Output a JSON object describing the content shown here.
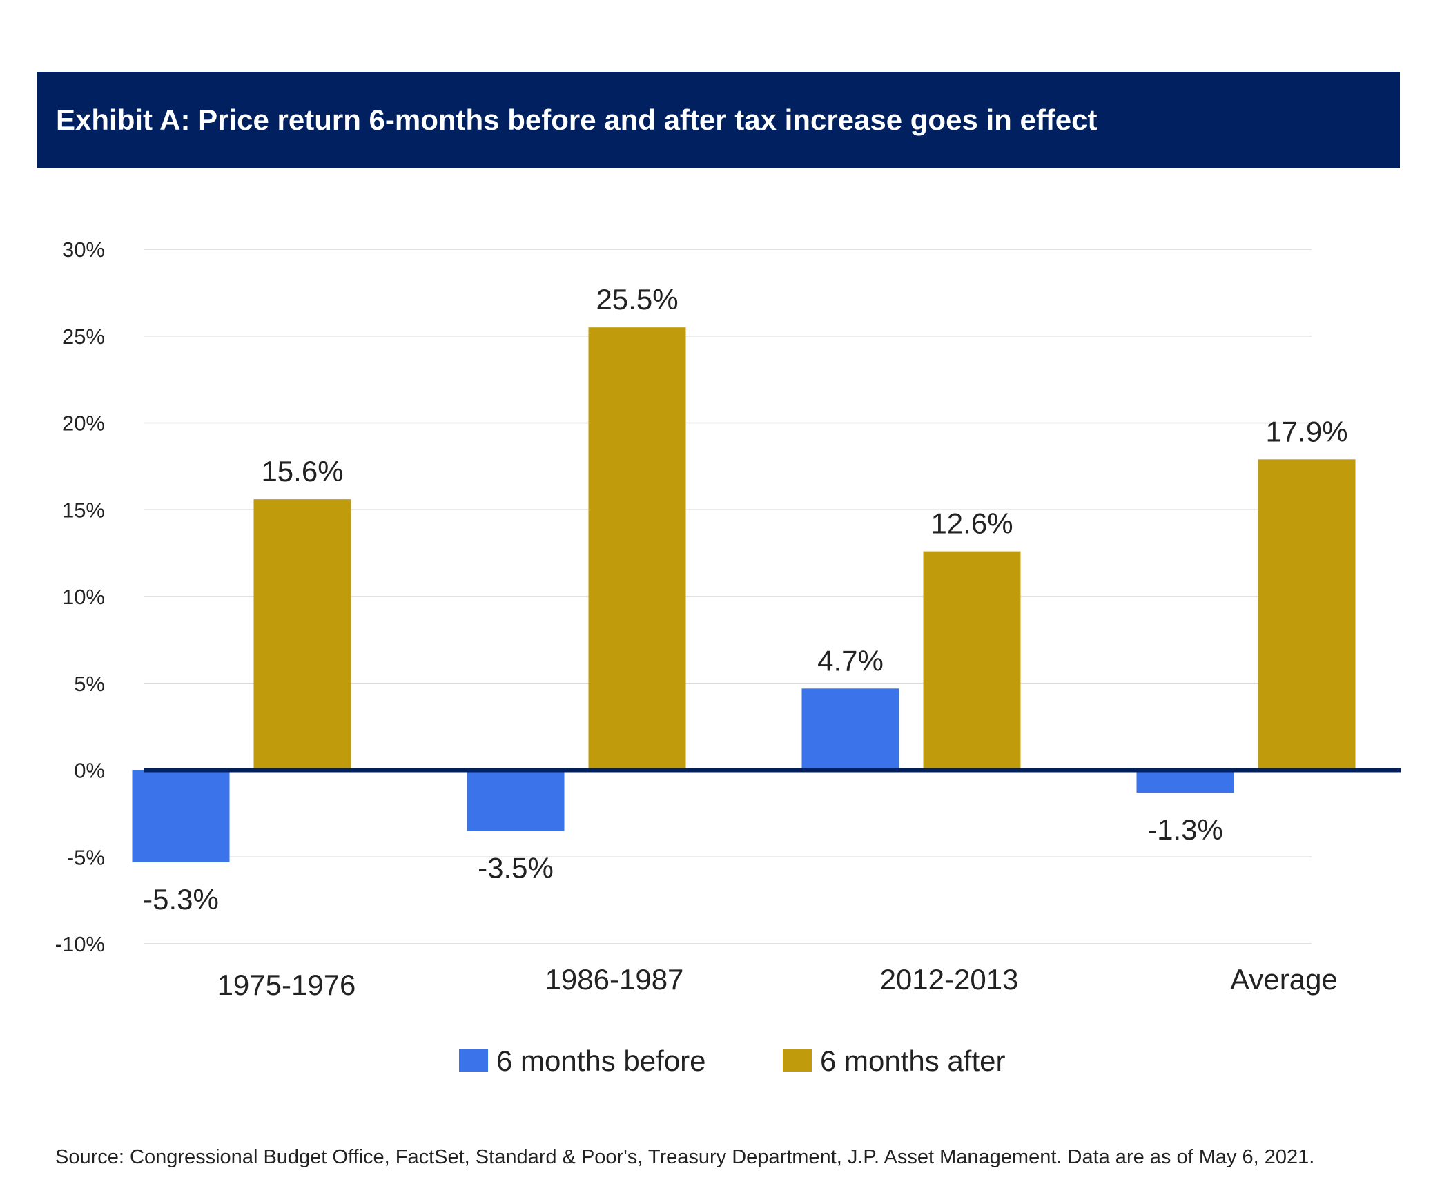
{
  "chart_data": {
    "type": "bar",
    "title": "Exhibit A: Price return 6-months before and after tax increase goes in effect",
    "categories": [
      "1975-1976",
      "1986-1987",
      "2012-2013",
      "Average"
    ],
    "series": [
      {
        "name": "6 months before",
        "color": "#3b73eb",
        "values": [
          -5.3,
          -3.5,
          4.7,
          -1.3
        ],
        "labels": [
          "-5.3%",
          "-3.5%",
          "4.7%",
          "-1.3%"
        ]
      },
      {
        "name": "6 months after",
        "color": "#c09c0c",
        "values": [
          15.6,
          25.5,
          12.6,
          17.9
        ],
        "labels": [
          "15.6%",
          "25.5%",
          "12.6%",
          "17.9%"
        ]
      }
    ],
    "ylim": [
      -10,
      30
    ],
    "yticks": [
      30,
      25,
      20,
      15,
      10,
      5,
      0,
      -5,
      -10
    ],
    "ytick_labels": [
      "30%",
      "25%",
      "20%",
      "15%",
      "10%",
      "5%",
      "0%",
      "-5%",
      "-10%"
    ],
    "grid": true,
    "legend": "bottom-center",
    "zero_line_color": "#002060"
  },
  "header": {
    "background": "#002060"
  },
  "source": "Source: Congressional Budget Office, FactSet, Standard & Poor's, Treasury Department, J.P. Asset Management. Data are as of May 6, 2021."
}
